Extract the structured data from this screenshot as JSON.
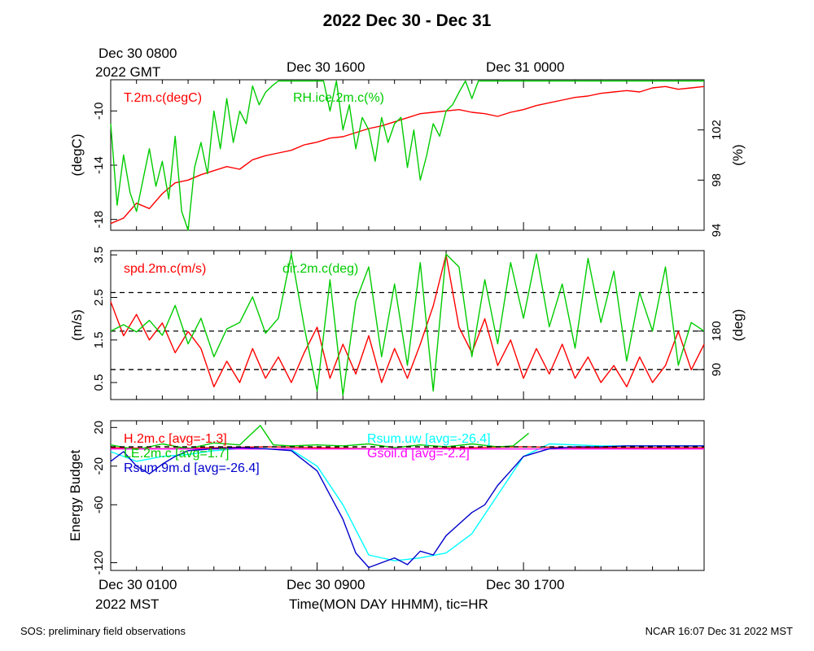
{
  "title": "2022 Dec 30 - Dec 31",
  "gmt_axis": {
    "first_label": "Dec 30 0800",
    "first_label_line2": "2022 GMT",
    "labels": [
      "Dec 30 1600",
      "Dec 31 0000"
    ]
  },
  "mst_axis": {
    "first_label": "Dec 30 0100",
    "first_label_line2": "2022 MST",
    "labels": [
      "Dec 30 0900",
      "Dec 30 1700"
    ],
    "xlabel": "Time(MON DAY HHMM), tic=HR"
  },
  "footer": {
    "left": "SOS: preliminary field observations",
    "right": "NCAR 16:07 Dec 31 2022 MST"
  },
  "colors": {
    "red": "#ff0000",
    "green": "#00cc00",
    "blue": "#0000cc",
    "cyan": "#00ffff",
    "magenta": "#ff00ff",
    "black": "#000000"
  },
  "chart_data": [
    {
      "type": "line",
      "id": "temperature_rh",
      "x_unit": "hours since Dec 30 0100 MST",
      "xlim": [
        0,
        23
      ],
      "ylabel": "(degC)",
      "ylim": [
        -18.8,
        -7.7
      ],
      "yticks": [
        -18,
        -14,
        -10
      ],
      "ylabel_right": "(%)",
      "ylim_right": [
        94,
        106
      ],
      "yticks_right": [
        94,
        98,
        102
      ],
      "series": [
        {
          "name": "T.2m.c(degC)",
          "color": "red",
          "axis": "left",
          "x": [
            0,
            0.5,
            1,
            1.5,
            2,
            2.5,
            3,
            3.5,
            4,
            4.5,
            5,
            5.5,
            6,
            6.5,
            7,
            7.5,
            8,
            8.5,
            9,
            9.5,
            10,
            10.5,
            11,
            11.5,
            12,
            12.5,
            13,
            13.5,
            14,
            14.5,
            15,
            15.5,
            16,
            16.5,
            17,
            17.5,
            18,
            18.5,
            19,
            19.5,
            20,
            20.5,
            21,
            21.5,
            22,
            22.5,
            23
          ],
          "y": [
            -18.3,
            -17.9,
            -16.8,
            -17.2,
            -16.1,
            -15.3,
            -15.1,
            -14.7,
            -14.4,
            -14.1,
            -14.3,
            -13.6,
            -13.3,
            -13.1,
            -12.9,
            -12.5,
            -12.3,
            -12.0,
            -11.9,
            -11.6,
            -11.3,
            -11.1,
            -10.8,
            -10.5,
            -10.2,
            -10.1,
            -10.0,
            -9.9,
            -10.1,
            -10.2,
            -10.4,
            -10.1,
            -9.9,
            -9.6,
            -9.4,
            -9.2,
            -9.0,
            -8.9,
            -8.7,
            -8.6,
            -8.5,
            -8.6,
            -8.3,
            -8.2,
            -8.4,
            -8.3,
            -8.2
          ]
        },
        {
          "name": "RH.ice.2m.c(%)",
          "color": "green",
          "axis": "right",
          "x": [
            0,
            0.25,
            0.5,
            0.75,
            1,
            1.25,
            1.5,
            1.75,
            2,
            2.25,
            2.5,
            2.75,
            3,
            3.25,
            3.5,
            3.75,
            4,
            4.25,
            4.5,
            4.75,
            5,
            5.25,
            5.5,
            5.75,
            6,
            6.25,
            6.5,
            6.75,
            7,
            7.25,
            7.5,
            7.75,
            8,
            8.25,
            8.5,
            8.75,
            9,
            9.25,
            9.5,
            9.75,
            10,
            10.25,
            10.5,
            10.75,
            11,
            11.25,
            11.5,
            11.75,
            12,
            12.25,
            12.5,
            12.75,
            13,
            13.25,
            13.5,
            13.75,
            14,
            14.25,
            14.5,
            14.75,
            15,
            15.25,
            15.5,
            15.75,
            16,
            16.5,
            17,
            17.5,
            18,
            19,
            20,
            21,
            22,
            23
          ],
          "y": [
            102.5,
            96.0,
            100.0,
            97.0,
            95.5,
            98.0,
            100.5,
            97.5,
            99.5,
            96.5,
            101.5,
            95.5,
            94.0,
            99.0,
            101.0,
            98.5,
            103.5,
            100.5,
            104.5,
            101.0,
            103.5,
            102.5,
            105.5,
            104.0,
            105.0,
            105.5,
            105.9,
            105.9,
            105.9,
            105.9,
            105.9,
            105.9,
            105.9,
            105.9,
            103.5,
            105.9,
            102.0,
            104.0,
            100.5,
            103.0,
            102.0,
            99.5,
            103.0,
            101.0,
            102.5,
            103.0,
            99.0,
            102.0,
            98.0,
            100.0,
            102.5,
            101.5,
            103.5,
            104.0,
            105.0,
            105.9,
            104.5,
            105.9,
            105.9,
            105.9,
            105.9,
            105.9,
            105.9,
            105.9,
            105.9,
            105.9,
            105.9,
            105.9,
            105.9,
            105.9,
            105.9,
            105.9,
            105.9,
            105.9
          ]
        }
      ]
    },
    {
      "type": "line",
      "id": "wind",
      "x_unit": "hours since Dec 30 0100 MST",
      "xlim": [
        0,
        23
      ],
      "ylabel": "(m/s)",
      "ylim": [
        0.1,
        3.6
      ],
      "yticks": [
        0.5,
        1.5,
        2.5,
        3.5
      ],
      "ylabel_right": "(deg)",
      "ylim_right": [
        20,
        368
      ],
      "yticks_right": [
        90,
        180
      ],
      "reference_lines_right": [
        90,
        180,
        270
      ],
      "series": [
        {
          "name": "spd.2m.c(m/s)",
          "color": "red",
          "axis": "left",
          "x": [
            0,
            0.5,
            1,
            1.5,
            2,
            2.5,
            3,
            3.5,
            4,
            4.5,
            5,
            5.5,
            6,
            6.5,
            7,
            7.5,
            8,
            8.5,
            9,
            9.5,
            10,
            10.5,
            11,
            11.5,
            12,
            12.5,
            13,
            13.5,
            14,
            14.5,
            15,
            15.5,
            16,
            16.5,
            17,
            17.5,
            18,
            18.5,
            19,
            19.5,
            20,
            20.5,
            21,
            21.5,
            22,
            22.5,
            23
          ],
          "y": [
            2.4,
            1.6,
            2.1,
            1.5,
            1.9,
            1.2,
            1.7,
            1.3,
            0.4,
            1.0,
            0.5,
            1.3,
            0.6,
            1.1,
            0.5,
            1.2,
            1.8,
            0.6,
            1.4,
            0.7,
            1.6,
            0.5,
            1.3,
            0.6,
            1.4,
            2.3,
            3.5,
            1.8,
            1.2,
            2.0,
            0.9,
            1.5,
            0.6,
            1.3,
            0.7,
            1.4,
            0.6,
            1.1,
            0.5,
            0.9,
            0.4,
            1.1,
            0.5,
            0.9,
            1.7,
            0.8,
            1.4
          ]
        },
        {
          "name": "dir.2m.c(deg)",
          "color": "green",
          "axis": "right",
          "x": [
            0,
            0.5,
            1,
            1.5,
            2,
            2.5,
            3,
            3.5,
            4,
            4.5,
            5,
            5.5,
            6,
            6.5,
            7,
            7.5,
            8,
            8.5,
            9,
            9.5,
            10,
            10.5,
            11,
            11.5,
            12,
            12.5,
            13,
            13.5,
            14,
            14.5,
            15,
            15.5,
            16,
            16.5,
            17,
            17.5,
            18,
            18.5,
            19,
            19.5,
            20,
            20.5,
            21,
            21.5,
            22,
            22.5,
            23
          ],
          "y": [
            180,
            195,
            178,
            205,
            170,
            240,
            150,
            210,
            120,
            185,
            200,
            260,
            175,
            210,
            360,
            190,
            40,
            300,
            30,
            250,
            330,
            120,
            290,
            100,
            340,
            40,
            360,
            330,
            120,
            300,
            150,
            340,
            210,
            360,
            190,
            290,
            140,
            350,
            200,
            320,
            110,
            270,
            180,
            330,
            100,
            200,
            180
          ]
        }
      ]
    },
    {
      "type": "line",
      "id": "energy_budget",
      "x_unit": "hours since Dec 30 0100 MST",
      "xlim": [
        0,
        23
      ],
      "ylabel": "Energy Budget",
      "ylim": [
        -128,
        27
      ],
      "yticks": [
        -120,
        -60,
        -20,
        20
      ],
      "series": [
        {
          "name": "H.2m.c [avg=-1.3]",
          "color": "red",
          "x": [
            0,
            2,
            4,
            6,
            8,
            10,
            12,
            14,
            16,
            18,
            20,
            23
          ],
          "y": [
            -1,
            -2,
            -1,
            0,
            -1,
            -2,
            -2,
            -1,
            0,
            -1,
            -1,
            -1
          ]
        },
        {
          "name": "LE.2m.c [avg=1.7]",
          "color": "green",
          "x": [
            0,
            1,
            2,
            3,
            4,
            5,
            5.8,
            6.3,
            7,
            8,
            9,
            10,
            11,
            12,
            13,
            14,
            15,
            15.6,
            16.2
          ],
          "y": [
            2,
            -3,
            3,
            -2,
            4,
            2,
            22,
            2,
            1,
            2,
            1,
            3,
            -1,
            2,
            0,
            3,
            0,
            1,
            14
          ]
        },
        {
          "name": "Rsum.uw [avg=-26.4]",
          "color": "cyan",
          "x": [
            0,
            1,
            2,
            3,
            4,
            5,
            6,
            7,
            8,
            9,
            10,
            11,
            12,
            13,
            14,
            15,
            16,
            17,
            18,
            19,
            20,
            21,
            22,
            23
          ],
          "y": [
            -5,
            -15,
            -10,
            -8,
            -4,
            -2,
            -2,
            -3,
            -20,
            -60,
            -112,
            -118,
            -115,
            -110,
            -90,
            -50,
            -10,
            3,
            2,
            1,
            1,
            1,
            1,
            1
          ]
        },
        {
          "name": "Gsoil.d [avg=-2.2]",
          "color": "magenta",
          "x": [
            0,
            23
          ],
          "y": [
            -2.2,
            -2.2
          ]
        },
        {
          "name": "Rsum.9m.d [avg=-26.4]",
          "color": "blue",
          "x": [
            0,
            0.5,
            1,
            1.5,
            2,
            2.5,
            3,
            4,
            5,
            6,
            7,
            8,
            9,
            9.5,
            10,
            10.5,
            11,
            11.5,
            12,
            12.5,
            13,
            13.5,
            14,
            14.5,
            15,
            15.5,
            16,
            17,
            18,
            19,
            20,
            21,
            22,
            23
          ],
          "y": [
            -15,
            -5,
            -20,
            -28,
            -18,
            -10,
            -4,
            -2,
            -1,
            -2,
            -4,
            -25,
            -75,
            -110,
            -125,
            -120,
            -115,
            -122,
            -108,
            -112,
            -92,
            -80,
            -68,
            -60,
            -40,
            -25,
            -10,
            -2,
            0,
            0,
            1,
            1,
            1,
            1
          ]
        },
        {
          "name": "",
          "color": "black",
          "dashed": true,
          "x": [
            0,
            23
          ],
          "y": [
            0,
            0
          ]
        }
      ]
    }
  ],
  "annotations": {
    "temperature_rh": {
      "left_series_label": "T.2m.c(degC)",
      "right_series_label": "RH.ice.2m.c(%)"
    },
    "wind": {
      "left_series_label": "spd.2m.c(m/s)",
      "right_series_label": "dir.2m.c(deg)"
    },
    "energy_budget": {
      "h_label": "H.2m.c [avg=-1.3]",
      "le_label": "LE.2m.c [avg=1.7]",
      "rsum9_label": "Rsum.9m.d [avg=-26.4]",
      "rsumuw_label": "Rsum.uw [avg=-26.4]",
      "gsoil_label": "Gsoil.d [avg=-2.2]"
    }
  }
}
